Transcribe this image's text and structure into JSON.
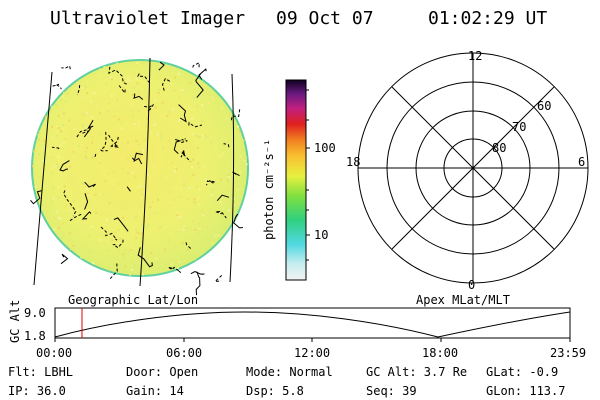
{
  "header": {
    "title": "Ultraviolet Imager",
    "date": "09 Oct 07",
    "time": "01:02:29 UT"
  },
  "colorbar": {
    "label": "photon cm⁻²s⁻¹",
    "ticks": [
      "100",
      "10"
    ]
  },
  "polar_plot": {
    "mlt_labels": [
      "12",
      "18",
      "6",
      "0"
    ],
    "lat_labels": [
      "60",
      "70",
      "80"
    ]
  },
  "panel_labels": {
    "left": "Geographic Lat/Lon",
    "right": "Apex MLat/MLT"
  },
  "altitude_strip": {
    "axis_label": "GC Alt",
    "y_ticks": [
      "9.0",
      "1.8"
    ],
    "x_ticks": [
      "00:00",
      "06:00",
      "12:00",
      "18:00",
      "23:59"
    ]
  },
  "info": {
    "flt": "Flt: LBHL",
    "ip": "IP: 36.0",
    "door": "Door: Open",
    "gain": "Gain: 14",
    "mode": "Mode: Normal",
    "dsp": "Dsp:    5.8",
    "gcalt": "GC Alt: 3.7 Re",
    "seq": "Seq: 39",
    "glat": "GLat:   -0.9",
    "glon": "GLon: 113.7"
  },
  "colors": {
    "disk_fill": "#f0f07a",
    "disk_edge": "#5ad0a0",
    "marker": "#e00000"
  }
}
